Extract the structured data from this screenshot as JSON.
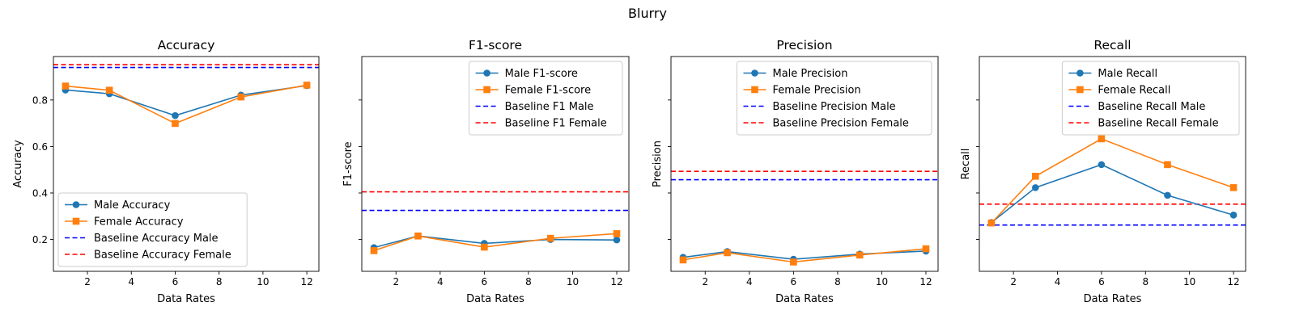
{
  "figure": {
    "suptitle": "Blurry"
  },
  "colors": {
    "male": "#1f77b4",
    "female": "#ff7f0e",
    "baseline_male": "#0000ff",
    "baseline_female": "#ff0000"
  },
  "chart_data": [
    {
      "type": "line",
      "title": "Accuracy",
      "xlabel": "Data Rates",
      "ylabel": "Accuracy",
      "x": [
        1,
        3,
        6,
        9,
        12
      ],
      "xlim": [
        0.45,
        12.55
      ],
      "ylim": [
        0.063,
        0.987
      ],
      "xticks": [
        2,
        4,
        6,
        8,
        10,
        12
      ],
      "yticks": [
        0.2,
        0.4,
        0.6,
        0.8
      ],
      "show_y_tick_labels": true,
      "legend_position": "lower-left",
      "series": [
        {
          "name": "Male Accuracy",
          "values": [
            0.843,
            0.827,
            0.733,
            0.821,
            0.862
          ],
          "marker": "circle",
          "color": "#1f77b4"
        },
        {
          "name": "Female Accuracy",
          "values": [
            0.86,
            0.842,
            0.699,
            0.813,
            0.864
          ],
          "marker": "square",
          "color": "#ff7f0e"
        }
      ],
      "baselines": [
        {
          "name": "Baseline Accuracy Male",
          "value": 0.94,
          "color": "#0000ff"
        },
        {
          "name": "Baseline Accuracy Female",
          "value": 0.952,
          "color": "#ff0000"
        }
      ]
    },
    {
      "type": "line",
      "title": "F1-score",
      "xlabel": "Data Rates",
      "ylabel": "F1-score",
      "x": [
        1,
        3,
        6,
        9,
        12
      ],
      "xlim": [
        0.45,
        12.55
      ],
      "ylim": [
        0.063,
        0.987
      ],
      "xticks": [
        2,
        4,
        6,
        8,
        10,
        12
      ],
      "yticks": [
        0.2,
        0.4,
        0.6,
        0.8
      ],
      "show_y_tick_labels": false,
      "legend_position": "upper-right",
      "series": [
        {
          "name": "Male F1-score",
          "values": [
            0.165,
            0.215,
            0.183,
            0.2,
            0.198
          ],
          "marker": "circle",
          "color": "#1f77b4"
        },
        {
          "name": "Female F1-score",
          "values": [
            0.152,
            0.215,
            0.167,
            0.205,
            0.225
          ],
          "marker": "square",
          "color": "#ff7f0e"
        }
      ],
      "baselines": [
        {
          "name": "Baseline F1 Male",
          "value": 0.325,
          "color": "#0000ff"
        },
        {
          "name": "Baseline F1 Female",
          "value": 0.405,
          "color": "#ff0000"
        }
      ]
    },
    {
      "type": "line",
      "title": "Precision",
      "xlabel": "Data Rates",
      "ylabel": "Precision",
      "x": [
        1,
        3,
        6,
        9,
        12
      ],
      "xlim": [
        0.45,
        12.55
      ],
      "ylim": [
        0.063,
        0.987
      ],
      "xticks": [
        2,
        4,
        6,
        8,
        10,
        12
      ],
      "yticks": [
        0.2,
        0.4,
        0.6,
        0.8
      ],
      "show_y_tick_labels": false,
      "legend_position": "upper-right",
      "series": [
        {
          "name": "Male Precision",
          "values": [
            0.123,
            0.148,
            0.115,
            0.137,
            0.15
          ],
          "marker": "circle",
          "color": "#1f77b4"
        },
        {
          "name": "Female Precision",
          "values": [
            0.112,
            0.143,
            0.103,
            0.133,
            0.16
          ],
          "marker": "square",
          "color": "#ff7f0e"
        }
      ],
      "baselines": [
        {
          "name": "Baseline Precision Male",
          "value": 0.457,
          "color": "#0000ff"
        },
        {
          "name": "Baseline Precision Female",
          "value": 0.493,
          "color": "#ff0000"
        }
      ]
    },
    {
      "type": "line",
      "title": "Recall",
      "xlabel": "Data Rates",
      "ylabel": "Recall",
      "x": [
        1,
        3,
        6,
        9,
        12
      ],
      "xlim": [
        0.45,
        12.55
      ],
      "ylim": [
        0.063,
        0.987
      ],
      "xticks": [
        2,
        4,
        6,
        8,
        10,
        12
      ],
      "yticks": [
        0.2,
        0.4,
        0.6,
        0.8
      ],
      "show_y_tick_labels": false,
      "legend_position": "upper-right",
      "series": [
        {
          "name": "Male Recall",
          "values": [
            0.273,
            0.423,
            0.522,
            0.39,
            0.305
          ],
          "marker": "circle",
          "color": "#1f77b4"
        },
        {
          "name": "Female Recall",
          "values": [
            0.271,
            0.472,
            0.633,
            0.522,
            0.423
          ],
          "marker": "square",
          "color": "#ff7f0e"
        }
      ],
      "baselines": [
        {
          "name": "Baseline Recall Male",
          "value": 0.262,
          "color": "#0000ff"
        },
        {
          "name": "Baseline Recall Female",
          "value": 0.352,
          "color": "#ff0000"
        }
      ]
    }
  ]
}
